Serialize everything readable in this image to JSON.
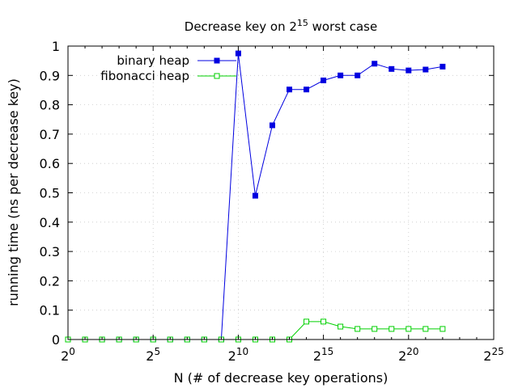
{
  "chart_data": {
    "type": "line",
    "title": {
      "prefix": "Decrease key on 2",
      "sup": "15",
      "suffix": " worst case"
    },
    "xlabel": "N (# of decrease key operations)",
    "ylabel": "running time (ns per decrease key)",
    "x_scale": "log2",
    "xlim": [
      1,
      33554432
    ],
    "ylim": [
      0,
      1
    ],
    "x_ticks": [
      {
        "value": 1,
        "base": "2",
        "exp": "0"
      },
      {
        "value": 32,
        "base": "2",
        "exp": "5"
      },
      {
        "value": 1024,
        "base": "2",
        "exp": "10"
      },
      {
        "value": 32768,
        "base": "2",
        "exp": "15"
      },
      {
        "value": 1048576,
        "base": "2",
        "exp": "20"
      },
      {
        "value": 33554432,
        "base": "2",
        "exp": "25"
      }
    ],
    "y_ticks": [
      "0",
      "0.1",
      "0.2",
      "0.3",
      "0.4",
      "0.5",
      "0.6",
      "0.7",
      "0.8",
      "0.9",
      "1"
    ],
    "grid": true,
    "legend_position": "top-left",
    "series": [
      {
        "name": "binary heap",
        "color": "#0000e0",
        "marker": "filled-square",
        "x": [
          1,
          2,
          4,
          8,
          16,
          32,
          64,
          128,
          256,
          512,
          1024,
          2048,
          4096,
          8192,
          16384,
          32768,
          65536,
          131072,
          262144,
          524288,
          1048576,
          2097152,
          4194304
        ],
        "y": [
          0,
          0,
          0,
          0,
          0,
          0,
          0,
          0,
          0,
          0,
          0.975,
          0.49,
          0.73,
          0.852,
          0.852,
          0.883,
          0.9,
          0.9,
          0.94,
          0.922,
          0.917,
          0.92,
          0.93
        ]
      },
      {
        "name": "fibonacci heap",
        "color": "#00d000",
        "marker": "open-square",
        "x": [
          1,
          2,
          4,
          8,
          16,
          32,
          64,
          128,
          256,
          512,
          1024,
          2048,
          4096,
          8192,
          16384,
          32768,
          65536,
          131072,
          262144,
          524288,
          1048576,
          2097152,
          4194304
        ],
        "y": [
          0,
          0,
          0,
          0,
          0,
          0,
          0,
          0,
          0,
          0,
          0,
          0,
          0,
          0,
          0.061,
          0.061,
          0.044,
          0.036,
          0.036,
          0.036,
          0.036,
          0.036,
          0.036
        ]
      }
    ]
  }
}
